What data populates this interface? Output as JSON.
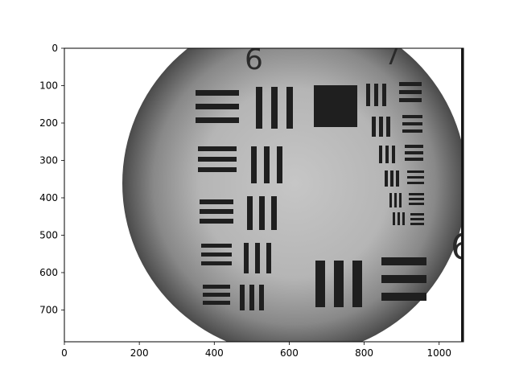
{
  "chart_data": {
    "type": "image",
    "subject": "USAF 1951 resolution test target (microscope image, grayscale)",
    "xlim": [
      0,
      1065
    ],
    "ylim": [
      785,
      0
    ],
    "y_inverted": true,
    "grid": false,
    "xticks": [
      0,
      200,
      400,
      600,
      800,
      1000
    ],
    "yticks": [
      0,
      100,
      200,
      300,
      400,
      500,
      600,
      700
    ],
    "xtick_labels": [
      "0",
      "200",
      "400",
      "600",
      "800",
      "1000"
    ],
    "ytick_labels": [
      "0",
      "100",
      "200",
      "300",
      "400",
      "500",
      "600",
      "700"
    ],
    "target_numerals": [
      "6",
      "7",
      "6"
    ],
    "colors": {
      "background": "#ffffff",
      "disk_center": "#c4c4c4",
      "disk_edge": "#4a4a4a",
      "bars": "#1f1f1f"
    }
  }
}
